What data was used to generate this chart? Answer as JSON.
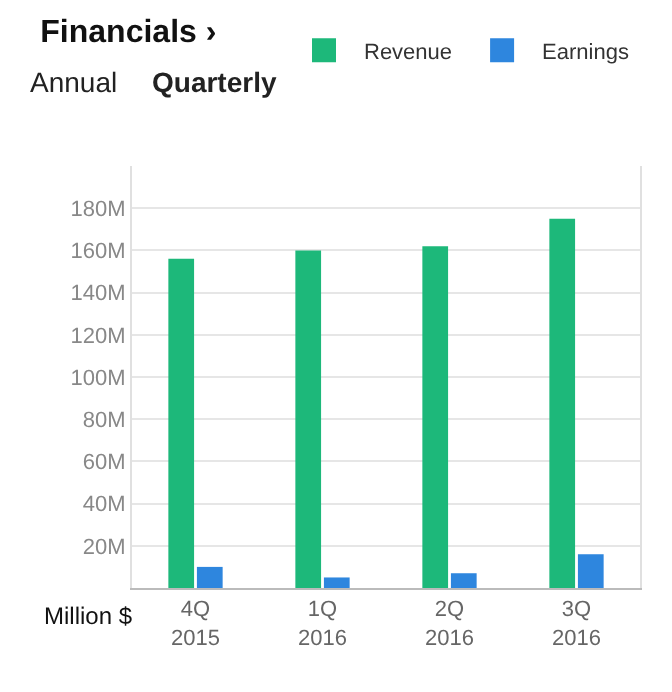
{
  "chart_data": {
    "type": "bar",
    "title": "Financials ›",
    "annotations": [
      "Annual",
      "Quarterly",
      "Million $"
    ],
    "categories": [
      "4Q 2015",
      "1Q 2016",
      "2Q 2016",
      "3Q 2016"
    ],
    "series": [
      {
        "name": "Revenue",
        "color": "#1db87a",
        "values": [
          156,
          160,
          162,
          175
        ]
      },
      {
        "name": "Earnings",
        "color": "#2e86de",
        "values": [
          10,
          5,
          7,
          16
        ]
      }
    ],
    "ylim": [
      0,
      200
    ],
    "yticks": [
      {
        "value": 20,
        "label": "20M"
      },
      {
        "value": 40,
        "label": "40M"
      },
      {
        "value": 60,
        "label": "60M"
      },
      {
        "value": 80,
        "label": "80M"
      },
      {
        "value": 100,
        "label": "100M"
      },
      {
        "value": 120,
        "label": "120M"
      },
      {
        "value": 140,
        "label": "140M"
      },
      {
        "value": 160,
        "label": "160M"
      },
      {
        "value": 180,
        "label": "180M"
      }
    ],
    "grid": "y",
    "legend": "top right"
  }
}
